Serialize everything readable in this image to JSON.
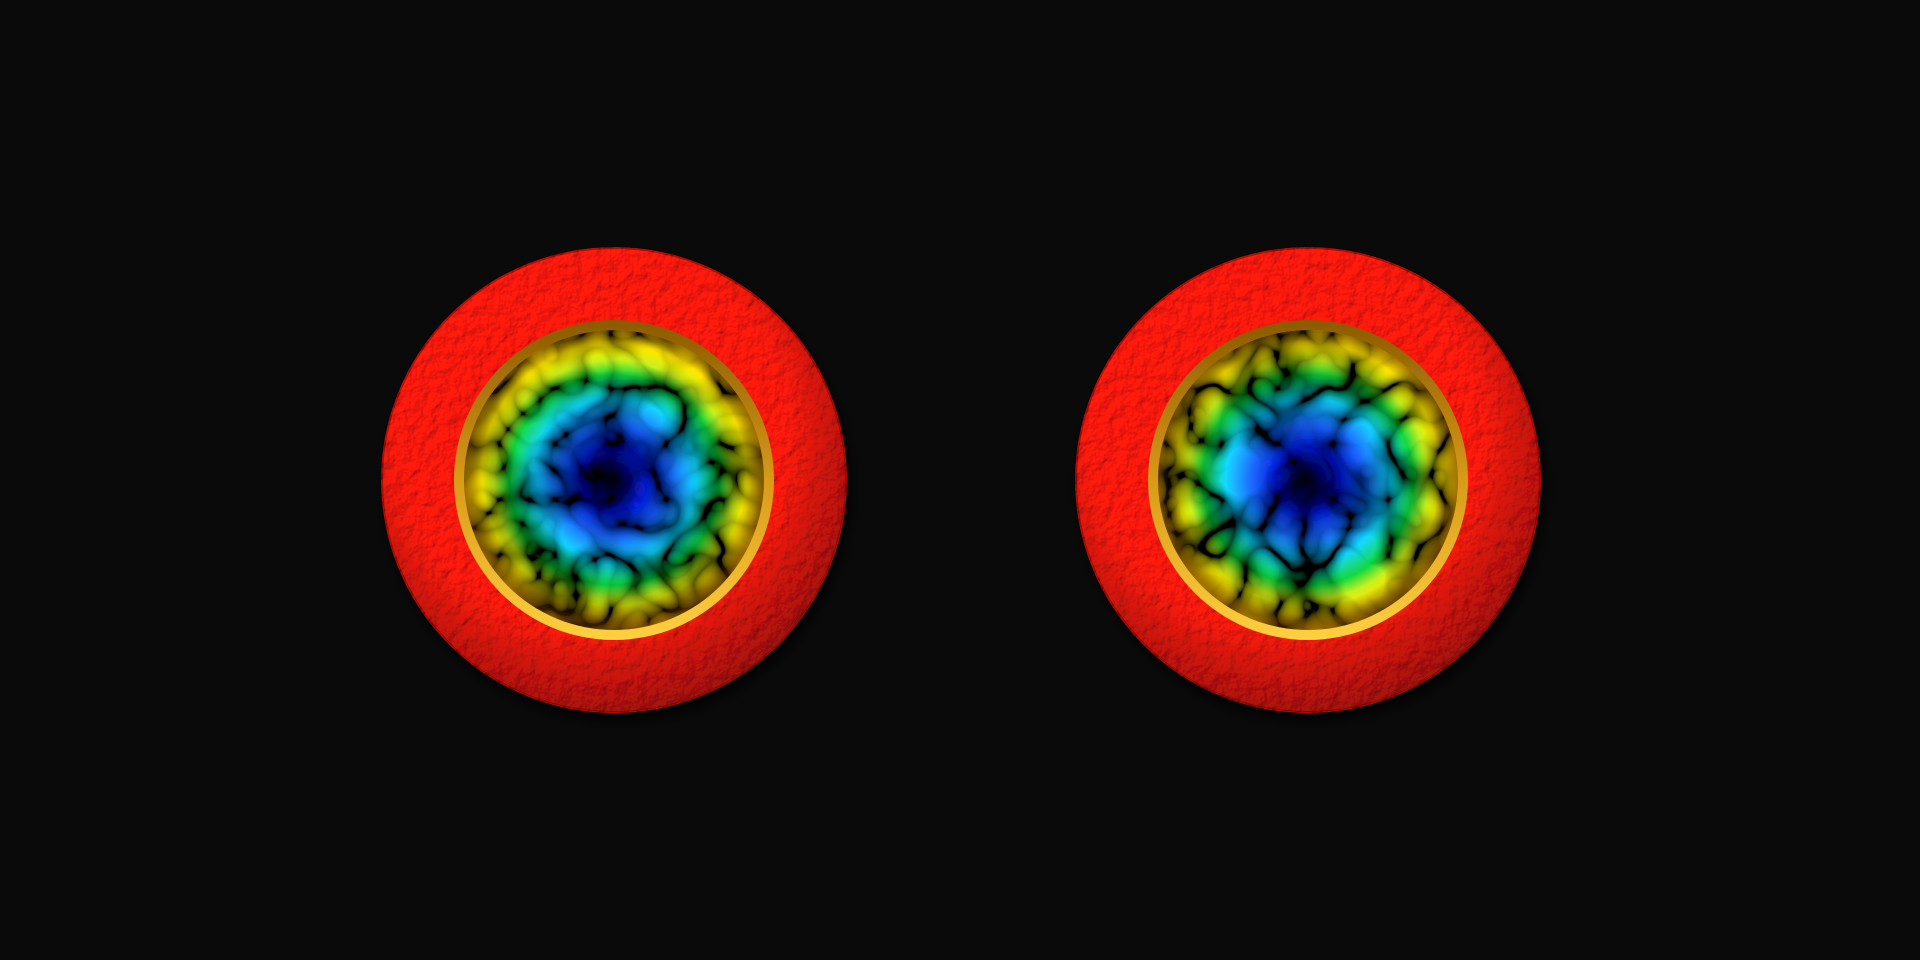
{
  "scene": {
    "background_color": "#0a0a0b",
    "eyes": [
      {
        "name": "left-eye"
      },
      {
        "name": "right-eye"
      }
    ],
    "colors": {
      "outer_ring": "#ff1a0e",
      "outer_ring_shadow": "#b80800",
      "bezel": "#c98a10",
      "iris_stops": [
        "#000010",
        "#0a1fd8",
        "#1f6bff",
        "#18d8ff",
        "#12d840",
        "#c8f020",
        "#ffe600",
        "#f6c000"
      ]
    }
  }
}
